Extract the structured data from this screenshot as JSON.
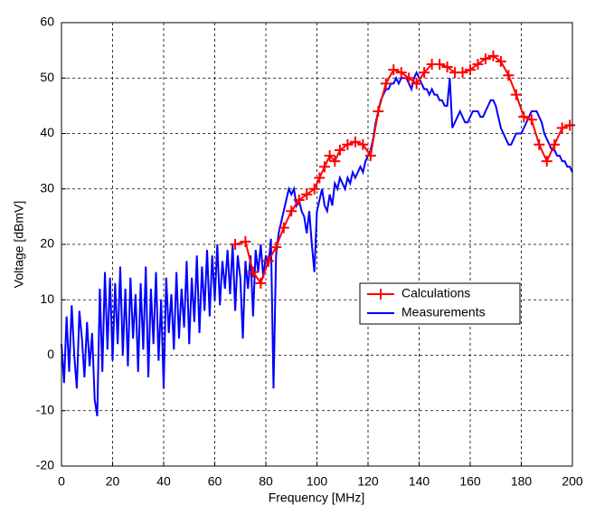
{
  "chart_data": {
    "type": "line",
    "xlabel": "Frequency [MHz]",
    "ylabel": "Voltage [dBmV]",
    "xlim": [
      0,
      200
    ],
    "ylim": [
      -20,
      60
    ],
    "xticks": [
      0,
      20,
      40,
      60,
      80,
      100,
      120,
      140,
      160,
      180,
      200
    ],
    "yticks": [
      -20,
      -10,
      0,
      10,
      20,
      30,
      40,
      50,
      60
    ],
    "grid": true,
    "legend": "center right",
    "series": [
      {
        "name": "Calculations",
        "color": "#ff0000",
        "marker": "+",
        "x": [
          68,
          72,
          75,
          78,
          81,
          84,
          87,
          90,
          93,
          96,
          99,
          101,
          103,
          105,
          107,
          109,
          112,
          115,
          118,
          121,
          124,
          127,
          130,
          133,
          136,
          139,
          142,
          145,
          148,
          151,
          154,
          157,
          160,
          163,
          166,
          169,
          172,
          175,
          178,
          181,
          184,
          187,
          190,
          193,
          196,
          199
        ],
        "values": [
          20,
          20.5,
          15,
          13,
          17,
          19.5,
          23,
          26,
          28,
          29,
          30,
          32,
          34,
          36,
          35,
          37,
          38,
          38.5,
          38,
          36,
          44,
          49,
          51.5,
          51,
          50,
          49,
          51,
          52.5,
          52.5,
          52,
          51,
          51,
          51.5,
          52.5,
          53.5,
          54,
          53,
          50.5,
          47,
          43,
          42.5,
          38,
          35,
          38,
          41,
          41.5
        ]
      },
      {
        "name": "Measurements",
        "color": "#0000ff",
        "marker": "none",
        "x": [
          0,
          1,
          2,
          3,
          4,
          5,
          6,
          7,
          8,
          9,
          10,
          11,
          12,
          13,
          14,
          15,
          16,
          17,
          18,
          19,
          20,
          21,
          22,
          23,
          24,
          25,
          26,
          27,
          28,
          29,
          30,
          31,
          32,
          33,
          34,
          35,
          36,
          37,
          38,
          39,
          40,
          41,
          42,
          43,
          44,
          45,
          46,
          47,
          48,
          49,
          50,
          51,
          52,
          53,
          54,
          55,
          56,
          57,
          58,
          59,
          60,
          61,
          62,
          63,
          64,
          65,
          66,
          67,
          68,
          69,
          70,
          71,
          72,
          73,
          74,
          75,
          76,
          77,
          78,
          79,
          80,
          81,
          82,
          83,
          84,
          85,
          86,
          87,
          88,
          89,
          90,
          91,
          92,
          93,
          94,
          95,
          96,
          97,
          98,
          99,
          100,
          101,
          102,
          103,
          104,
          105,
          106,
          107,
          108,
          109,
          110,
          111,
          112,
          113,
          114,
          115,
          116,
          117,
          118,
          119,
          120,
          121,
          122,
          123,
          124,
          125,
          126,
          127,
          128,
          129,
          130,
          131,
          132,
          133,
          134,
          135,
          136,
          137,
          138,
          139,
          140,
          141,
          142,
          143,
          144,
          145,
          146,
          147,
          148,
          149,
          150,
          151,
          152,
          153,
          154,
          155,
          156,
          157,
          158,
          159,
          160,
          161,
          162,
          163,
          164,
          165,
          166,
          167,
          168,
          169,
          170,
          171,
          172,
          173,
          174,
          175,
          176,
          177,
          178,
          179,
          180,
          181,
          182,
          183,
          184,
          185,
          186,
          187,
          188,
          189,
          190,
          191,
          192,
          193,
          194,
          195,
          196,
          197,
          198,
          199,
          200
        ],
        "values": [
          2,
          -5,
          7,
          -3,
          9,
          0,
          -6,
          8,
          3,
          -4,
          6,
          -2,
          4,
          -8,
          -11,
          12,
          -3,
          15,
          1,
          14,
          -1,
          13,
          2,
          16,
          0,
          12,
          -2,
          14,
          3,
          11,
          -3,
          13,
          1,
          16,
          -4,
          12,
          2,
          15,
          -1,
          10,
          -6,
          14,
          4,
          11,
          1,
          15,
          3,
          12,
          5,
          17,
          2,
          14,
          6,
          18,
          4,
          16,
          8,
          19,
          7,
          18,
          10,
          20,
          9,
          17,
          12,
          19,
          11,
          20,
          8,
          18,
          14,
          3,
          17,
          12,
          18,
          7,
          19,
          15,
          20,
          14,
          18,
          16,
          21,
          -6,
          18,
          22,
          24,
          26,
          28,
          30,
          29,
          30,
          27,
          28,
          26,
          25,
          22,
          26,
          20,
          15,
          26,
          28,
          30,
          27,
          26,
          29,
          27,
          31,
          30,
          32,
          31,
          30,
          32,
          31,
          33,
          32,
          33,
          34,
          33,
          35,
          36,
          37,
          39,
          42,
          44,
          46,
          47,
          48,
          48,
          49,
          49,
          50,
          49,
          50,
          50,
          50,
          49,
          48,
          50,
          51,
          50,
          49,
          48,
          48,
          47,
          48,
          47,
          47,
          46,
          46,
          45,
          45,
          50,
          41,
          42,
          43,
          44,
          43,
          42,
          42,
          43,
          44,
          44,
          44,
          43,
          43,
          44,
          45,
          46,
          46,
          45,
          43,
          41,
          40,
          39,
          38,
          38,
          39,
          40,
          40,
          40,
          41,
          42,
          43,
          44,
          44,
          44,
          43,
          42,
          40,
          39,
          38,
          37,
          37,
          36,
          36,
          35,
          35,
          34,
          34,
          33
        ]
      }
    ]
  }
}
